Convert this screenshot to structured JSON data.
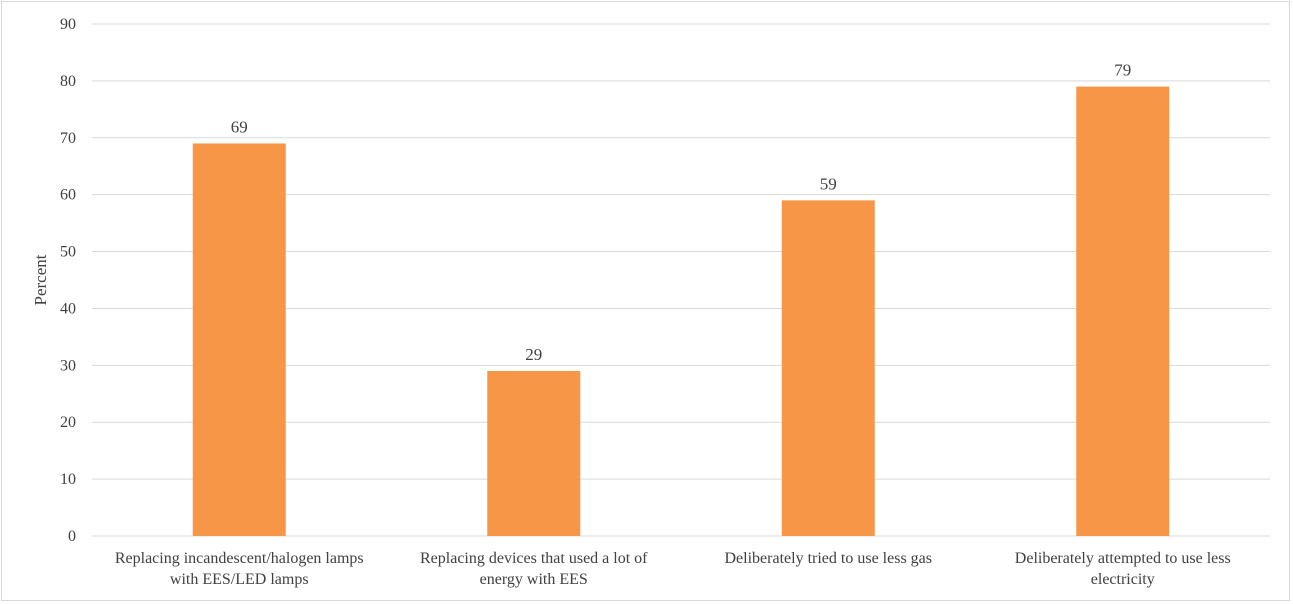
{
  "chart_data": {
    "type": "bar",
    "categories": [
      [
        "Replacing incandescent/halogen lamps",
        "with EES/LED lamps"
      ],
      [
        "Replacing devices that used a lot of",
        "energy with EES"
      ],
      [
        "Deliberately tried to use less gas"
      ],
      [
        "Deliberately attempted to use less",
        "electricity"
      ]
    ],
    "values": [
      69,
      29,
      59,
      79
    ],
    "ylabel": "Percent",
    "ylim": [
      0,
      90
    ],
    "yticks": [
      0,
      10,
      20,
      30,
      40,
      50,
      60,
      70,
      80,
      90
    ],
    "grid": true,
    "bar_color": "#f79646",
    "grid_color": "#d9d9d9"
  }
}
